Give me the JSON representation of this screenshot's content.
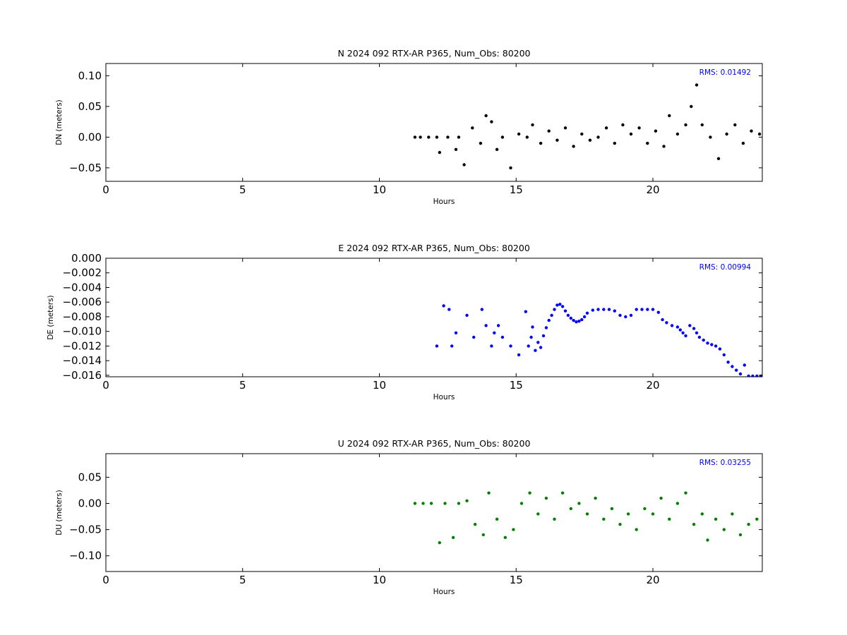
{
  "chart_data": [
    {
      "type": "scatter",
      "title": "N 2024 092 RTX-AR  P365, Num_Obs: 80200",
      "xlabel": "Hours",
      "ylabel": "DN (meters)",
      "xlim": [
        0,
        24
      ],
      "ylim": [
        -0.072,
        0.12
      ],
      "xticks": [
        0,
        5,
        10,
        15,
        20
      ],
      "yticks": [
        0.1,
        0.05,
        0.0,
        -0.05
      ],
      "ytick_labels": [
        "0.10",
        "0.05",
        "0.00",
        "−0.05"
      ],
      "rms_text": "RMS:  0.01492",
      "color": "#000000",
      "series": [
        {
          "values": [
            {
              "x": 11.3,
              "y": 0.0
            },
            {
              "x": 11.5,
              "y": 0.0
            },
            {
              "x": 11.8,
              "y": 0.0
            },
            {
              "x": 12.1,
              "y": 0.0
            },
            {
              "x": 12.2,
              "y": -0.025
            },
            {
              "x": 12.5,
              "y": 0.0
            },
            {
              "x": 12.8,
              "y": -0.02
            },
            {
              "x": 12.9,
              "y": 0.0
            },
            {
              "x": 13.1,
              "y": -0.045
            },
            {
              "x": 13.4,
              "y": 0.015
            },
            {
              "x": 13.7,
              "y": -0.01
            },
            {
              "x": 13.9,
              "y": 0.035
            },
            {
              "x": 14.1,
              "y": 0.025
            },
            {
              "x": 14.3,
              "y": -0.02
            },
            {
              "x": 14.5,
              "y": 0.0
            },
            {
              "x": 14.8,
              "y": -0.05
            },
            {
              "x": 15.1,
              "y": 0.005
            },
            {
              "x": 15.4,
              "y": 0.0
            },
            {
              "x": 15.6,
              "y": 0.02
            },
            {
              "x": 15.9,
              "y": -0.01
            },
            {
              "x": 16.2,
              "y": 0.01
            },
            {
              "x": 16.5,
              "y": -0.005
            },
            {
              "x": 16.8,
              "y": 0.015
            },
            {
              "x": 17.1,
              "y": -0.015
            },
            {
              "x": 17.4,
              "y": 0.005
            },
            {
              "x": 17.7,
              "y": -0.005
            },
            {
              "x": 18.0,
              "y": 0.0
            },
            {
              "x": 18.3,
              "y": 0.015
            },
            {
              "x": 18.6,
              "y": -0.01
            },
            {
              "x": 18.9,
              "y": 0.02
            },
            {
              "x": 19.2,
              "y": 0.005
            },
            {
              "x": 19.5,
              "y": 0.015
            },
            {
              "x": 19.8,
              "y": -0.01
            },
            {
              "x": 20.1,
              "y": 0.01
            },
            {
              "x": 20.4,
              "y": -0.015
            },
            {
              "x": 20.6,
              "y": 0.035
            },
            {
              "x": 20.9,
              "y": 0.005
            },
            {
              "x": 21.2,
              "y": 0.02
            },
            {
              "x": 21.4,
              "y": 0.05
            },
            {
              "x": 21.6,
              "y": 0.085
            },
            {
              "x": 21.8,
              "y": 0.02
            },
            {
              "x": 22.1,
              "y": 0.0
            },
            {
              "x": 22.4,
              "y": -0.035
            },
            {
              "x": 22.7,
              "y": 0.005
            },
            {
              "x": 23.0,
              "y": 0.02
            },
            {
              "x": 23.3,
              "y": -0.01
            },
            {
              "x": 23.6,
              "y": 0.01
            },
            {
              "x": 23.9,
              "y": 0.005
            }
          ]
        }
      ]
    },
    {
      "type": "scatter",
      "title": "E 2024 092 RTX-AR  P365, Num_Obs: 80200",
      "xlabel": "Hours",
      "ylabel": "DE (meters)",
      "xlim": [
        0,
        24
      ],
      "ylim": [
        -0.0162,
        0.0
      ],
      "xticks": [
        0,
        5,
        10,
        15,
        20
      ],
      "yticks": [
        0.0,
        -0.002,
        -0.004,
        -0.006,
        -0.008,
        -0.01,
        -0.012,
        -0.014,
        -0.016
      ],
      "ytick_labels": [
        "0.000",
        "−0.002",
        "−0.004",
        "−0.006",
        "−0.008",
        "−0.010",
        "−0.012",
        "−0.014",
        "−0.016"
      ],
      "rms_text": "RMS:  0.00994",
      "color": "#0000ff",
      "series": [
        {
          "values": [
            {
              "x": 12.1,
              "y": -0.012
            },
            {
              "x": 12.35,
              "y": -0.0065
            },
            {
              "x": 12.55,
              "y": -0.007
            },
            {
              "x": 12.65,
              "y": -0.012
            },
            {
              "x": 12.8,
              "y": -0.0102
            },
            {
              "x": 13.2,
              "y": -0.0078
            },
            {
              "x": 13.45,
              "y": -0.0108
            },
            {
              "x": 13.75,
              "y": -0.007
            },
            {
              "x": 13.9,
              "y": -0.0092
            },
            {
              "x": 14.1,
              "y": -0.012
            },
            {
              "x": 14.2,
              "y": -0.0102
            },
            {
              "x": 14.35,
              "y": -0.0092
            },
            {
              "x": 14.5,
              "y": -0.0108
            },
            {
              "x": 14.8,
              "y": -0.012
            },
            {
              "x": 15.1,
              "y": -0.0132
            },
            {
              "x": 15.35,
              "y": -0.0073
            },
            {
              "x": 15.45,
              "y": -0.012
            },
            {
              "x": 15.55,
              "y": -0.0108
            },
            {
              "x": 15.6,
              "y": -0.0094
            },
            {
              "x": 15.7,
              "y": -0.0126
            },
            {
              "x": 15.8,
              "y": -0.0115
            },
            {
              "x": 15.9,
              "y": -0.0122
            },
            {
              "x": 16.0,
              "y": -0.0106
            },
            {
              "x": 16.1,
              "y": -0.0095
            },
            {
              "x": 16.2,
              "y": -0.0085
            },
            {
              "x": 16.3,
              "y": -0.0078
            },
            {
              "x": 16.4,
              "y": -0.007
            },
            {
              "x": 16.5,
              "y": -0.0064
            },
            {
              "x": 16.6,
              "y": -0.0063
            },
            {
              "x": 16.7,
              "y": -0.0066
            },
            {
              "x": 16.8,
              "y": -0.0072
            },
            {
              "x": 16.9,
              "y": -0.0078
            },
            {
              "x": 17.0,
              "y": -0.0082
            },
            {
              "x": 17.1,
              "y": -0.0085
            },
            {
              "x": 17.2,
              "y": -0.0087
            },
            {
              "x": 17.3,
              "y": -0.0086
            },
            {
              "x": 17.4,
              "y": -0.0084
            },
            {
              "x": 17.5,
              "y": -0.008
            },
            {
              "x": 17.6,
              "y": -0.0075
            },
            {
              "x": 17.8,
              "y": -0.0071
            },
            {
              "x": 18.0,
              "y": -0.007
            },
            {
              "x": 18.2,
              "y": -0.007
            },
            {
              "x": 18.4,
              "y": -0.007
            },
            {
              "x": 18.6,
              "y": -0.0072
            },
            {
              "x": 18.8,
              "y": -0.0078
            },
            {
              "x": 19.0,
              "y": -0.008
            },
            {
              "x": 19.2,
              "y": -0.0078
            },
            {
              "x": 19.4,
              "y": -0.007
            },
            {
              "x": 19.6,
              "y": -0.007
            },
            {
              "x": 19.8,
              "y": -0.007
            },
            {
              "x": 20.0,
              "y": -0.007
            },
            {
              "x": 20.2,
              "y": -0.0074
            },
            {
              "x": 20.35,
              "y": -0.0084
            },
            {
              "x": 20.5,
              "y": -0.0088
            },
            {
              "x": 20.7,
              "y": -0.0092
            },
            {
              "x": 20.9,
              "y": -0.0094
            },
            {
              "x": 21.0,
              "y": -0.0098
            },
            {
              "x": 21.1,
              "y": -0.0102
            },
            {
              "x": 21.2,
              "y": -0.0106
            },
            {
              "x": 21.35,
              "y": -0.0092
            },
            {
              "x": 21.5,
              "y": -0.0096
            },
            {
              "x": 21.6,
              "y": -0.0102
            },
            {
              "x": 21.7,
              "y": -0.0108
            },
            {
              "x": 21.85,
              "y": -0.0112
            },
            {
              "x": 22.0,
              "y": -0.0116
            },
            {
              "x": 22.15,
              "y": -0.0118
            },
            {
              "x": 22.3,
              "y": -0.012
            },
            {
              "x": 22.45,
              "y": -0.0124
            },
            {
              "x": 22.6,
              "y": -0.0132
            },
            {
              "x": 22.75,
              "y": -0.0142
            },
            {
              "x": 22.9,
              "y": -0.0148
            },
            {
              "x": 23.05,
              "y": -0.0153
            },
            {
              "x": 23.2,
              "y": -0.0158
            },
            {
              "x": 23.35,
              "y": -0.0146
            },
            {
              "x": 23.5,
              "y": -0.0161
            },
            {
              "x": 23.65,
              "y": -0.0161
            },
            {
              "x": 23.8,
              "y": -0.0161
            },
            {
              "x": 23.95,
              "y": -0.0161
            }
          ]
        }
      ]
    },
    {
      "type": "scatter",
      "title": "U 2024 092 RTX-AR  P365, Num_Obs: 80200",
      "xlabel": "Hours",
      "ylabel": "DU (meters)",
      "xlim": [
        0,
        24
      ],
      "ylim": [
        -0.13,
        0.095
      ],
      "xticks": [
        0,
        5,
        10,
        15,
        20
      ],
      "yticks": [
        0.05,
        0.0,
        -0.05,
        -0.1
      ],
      "ytick_labels": [
        "0.05",
        "0.00",
        "−0.05",
        "−0.10"
      ],
      "rms_text": "RMS:  0.03255",
      "color": "#008000",
      "series": [
        {
          "values": [
            {
              "x": 11.3,
              "y": 0.0
            },
            {
              "x": 11.6,
              "y": 0.0
            },
            {
              "x": 11.9,
              "y": 0.0
            },
            {
              "x": 12.2,
              "y": -0.075
            },
            {
              "x": 12.4,
              "y": 0.0
            },
            {
              "x": 12.7,
              "y": -0.065
            },
            {
              "x": 12.9,
              "y": 0.0
            },
            {
              "x": 13.2,
              "y": 0.005
            },
            {
              "x": 13.5,
              "y": -0.04
            },
            {
              "x": 13.8,
              "y": -0.06
            },
            {
              "x": 14.0,
              "y": 0.02
            },
            {
              "x": 14.3,
              "y": -0.03
            },
            {
              "x": 14.6,
              "y": -0.065
            },
            {
              "x": 14.9,
              "y": -0.05
            },
            {
              "x": 15.2,
              "y": 0.0
            },
            {
              "x": 15.5,
              "y": 0.02
            },
            {
              "x": 15.8,
              "y": -0.02
            },
            {
              "x": 16.1,
              "y": 0.01
            },
            {
              "x": 16.4,
              "y": -0.03
            },
            {
              "x": 16.7,
              "y": 0.02
            },
            {
              "x": 17.0,
              "y": -0.01
            },
            {
              "x": 17.3,
              "y": 0.0
            },
            {
              "x": 17.6,
              "y": -0.02
            },
            {
              "x": 17.9,
              "y": 0.01
            },
            {
              "x": 18.2,
              "y": -0.03
            },
            {
              "x": 18.5,
              "y": -0.01
            },
            {
              "x": 18.8,
              "y": -0.04
            },
            {
              "x": 19.1,
              "y": -0.02
            },
            {
              "x": 19.4,
              "y": -0.05
            },
            {
              "x": 19.7,
              "y": -0.01
            },
            {
              "x": 20.0,
              "y": -0.02
            },
            {
              "x": 20.3,
              "y": 0.01
            },
            {
              "x": 20.6,
              "y": -0.03
            },
            {
              "x": 20.9,
              "y": 0.0
            },
            {
              "x": 21.2,
              "y": 0.02
            },
            {
              "x": 21.5,
              "y": -0.04
            },
            {
              "x": 21.8,
              "y": -0.02
            },
            {
              "x": 22.0,
              "y": -0.07
            },
            {
              "x": 22.3,
              "y": -0.03
            },
            {
              "x": 22.6,
              "y": -0.05
            },
            {
              "x": 22.9,
              "y": -0.02
            },
            {
              "x": 23.2,
              "y": -0.06
            },
            {
              "x": 23.5,
              "y": -0.04
            },
            {
              "x": 23.8,
              "y": -0.03
            }
          ]
        }
      ]
    }
  ]
}
